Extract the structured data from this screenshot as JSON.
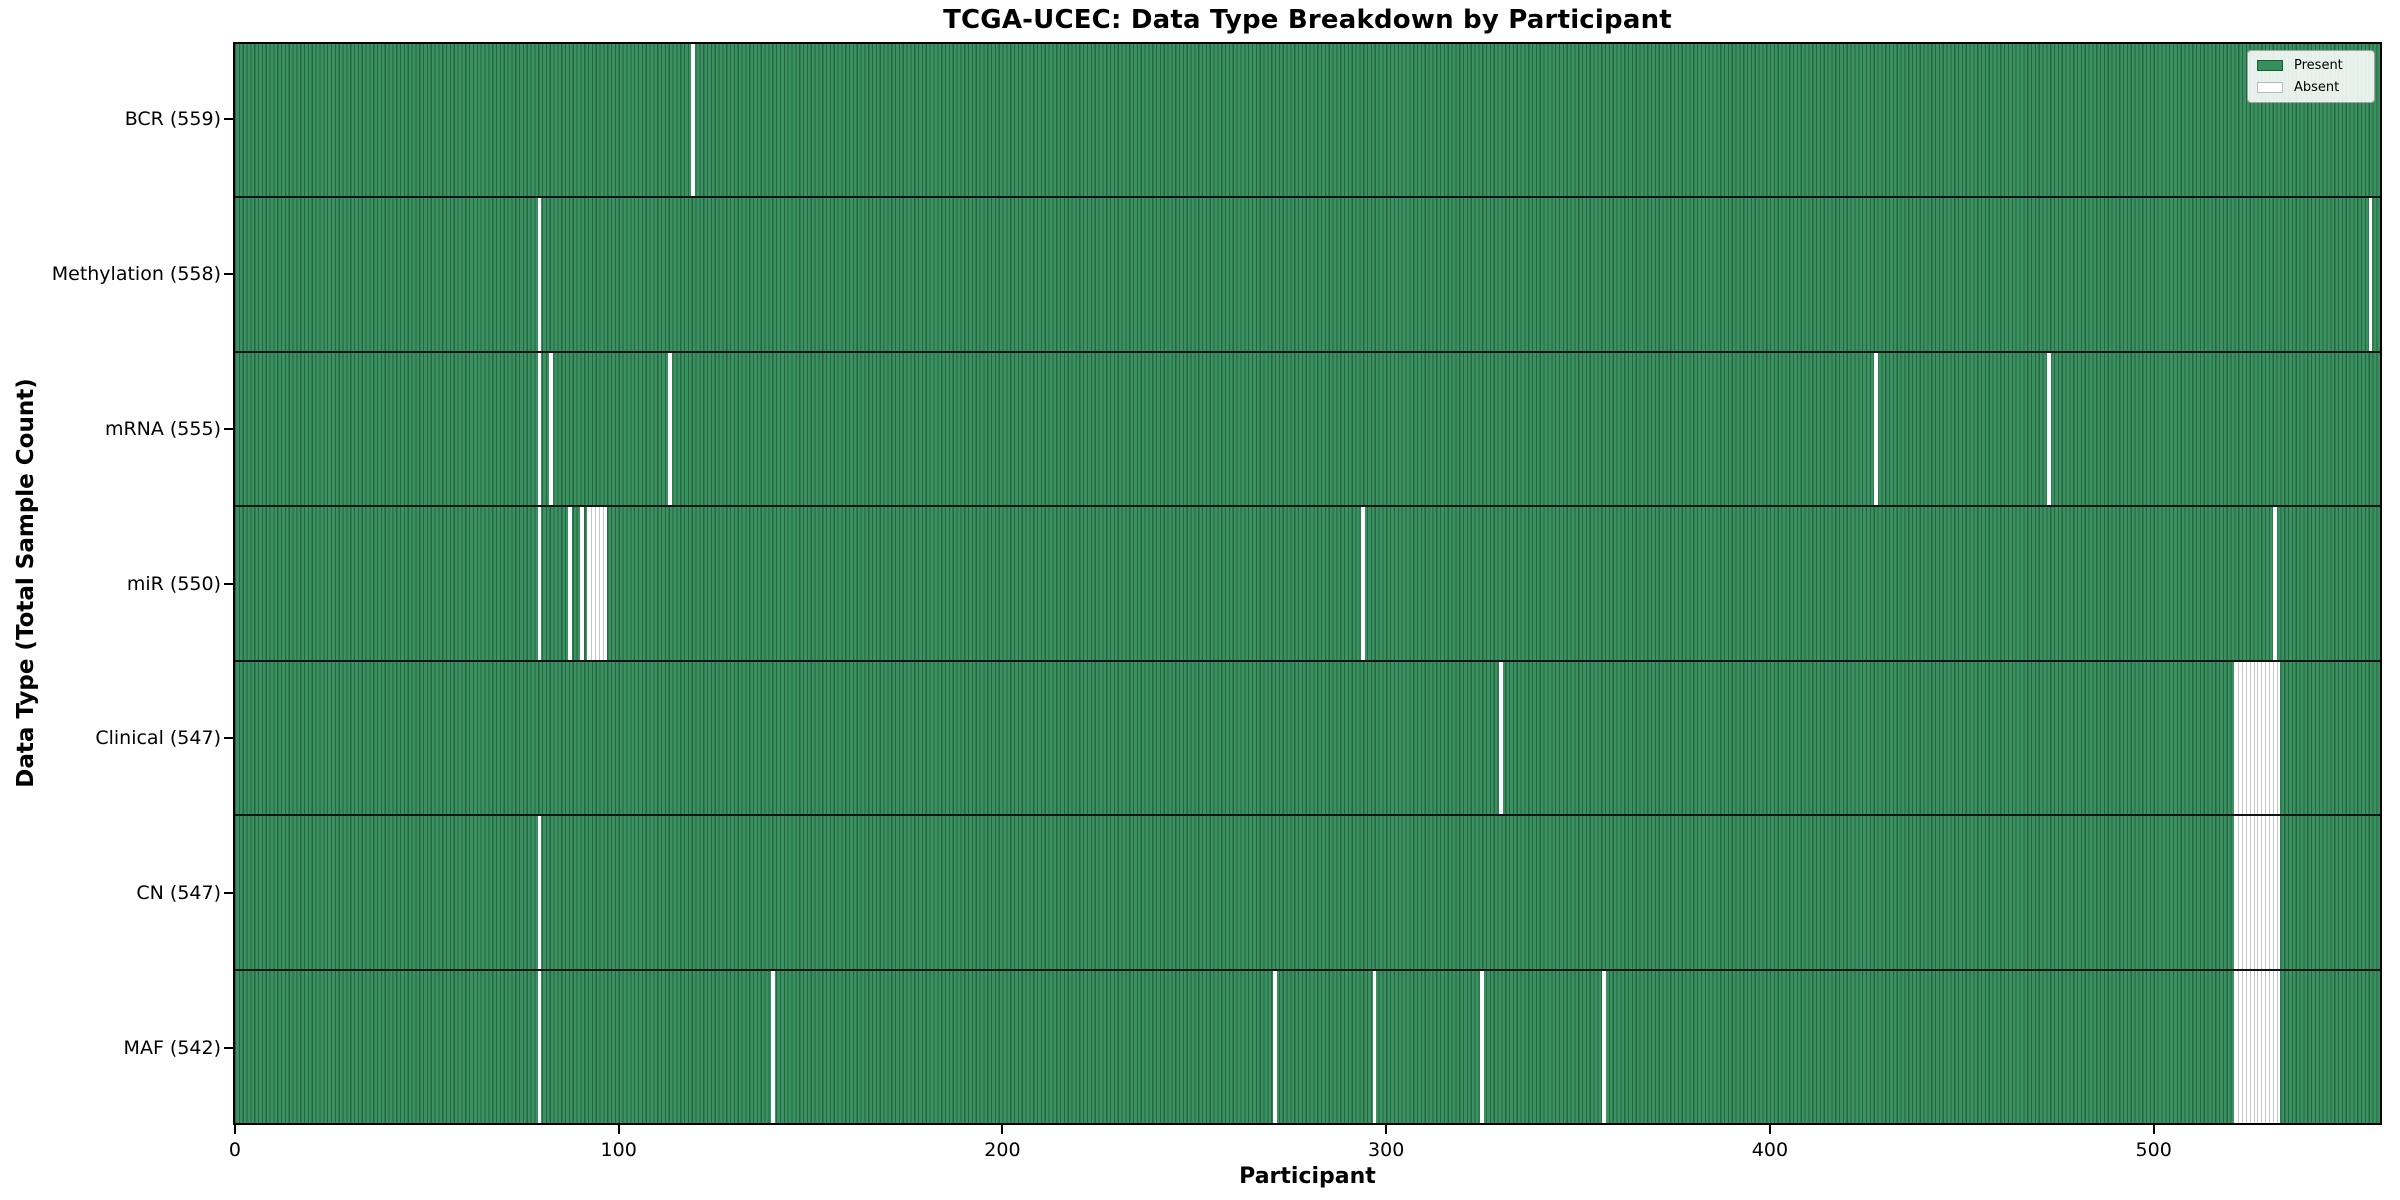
{
  "title": "TCGA-UCEC: Data Type Breakdown by Participant",
  "xlabel": "Participant",
  "ylabel": "Data Type (Total Sample Count)",
  "legend": {
    "present_label": "Present",
    "absent_label": "Absent"
  },
  "colors": {
    "present_fill": "#3b9161",
    "present_edge": "#256741",
    "absent_fill": "#ffffff",
    "absent_edge": "#c6c6c6",
    "axis": "#000000"
  },
  "chart_data": {
    "type": "heatmap",
    "title": "TCGA-UCEC: Data Type Breakdown by Participant",
    "xlabel": "Participant",
    "ylabel": "Data Type (Total Sample Count)",
    "legend_position": "upper right",
    "n_participants": 560,
    "xlim": [
      0,
      560
    ],
    "x_ticks": [
      0,
      100,
      200,
      300,
      400,
      500
    ],
    "rows": [
      {
        "name": "BCR",
        "label": "BCR (559)",
        "count": 559,
        "absent": [
          119
        ]
      },
      {
        "name": "Methylation",
        "label": "Methylation (558)",
        "count": 558,
        "absent": [
          79,
          557
        ]
      },
      {
        "name": "mRNA",
        "label": "mRNA (555)",
        "count": 555,
        "absent": [
          79,
          82,
          113,
          428,
          473
        ]
      },
      {
        "name": "miR",
        "label": "miR (550)",
        "count": 550,
        "absent": [
          79,
          87,
          90,
          92,
          93,
          94,
          95,
          96,
          294,
          532
        ]
      },
      {
        "name": "Clinical",
        "label": "Clinical (547)",
        "count": 547,
        "absent": [
          330,
          522,
          523,
          524,
          525,
          526,
          527,
          528,
          529,
          530,
          531,
          532,
          533
        ]
      },
      {
        "name": "CN",
        "label": "CN (547)",
        "count": 547,
        "absent": [
          79,
          522,
          523,
          524,
          525,
          526,
          527,
          528,
          529,
          530,
          531,
          532,
          533
        ]
      },
      {
        "name": "MAF",
        "label": "MAF (542)",
        "count": 542,
        "absent": [
          79,
          140,
          271,
          297,
          325,
          357,
          522,
          523,
          524,
          525,
          526,
          527,
          528,
          529,
          530,
          531,
          532,
          533
        ]
      }
    ]
  }
}
